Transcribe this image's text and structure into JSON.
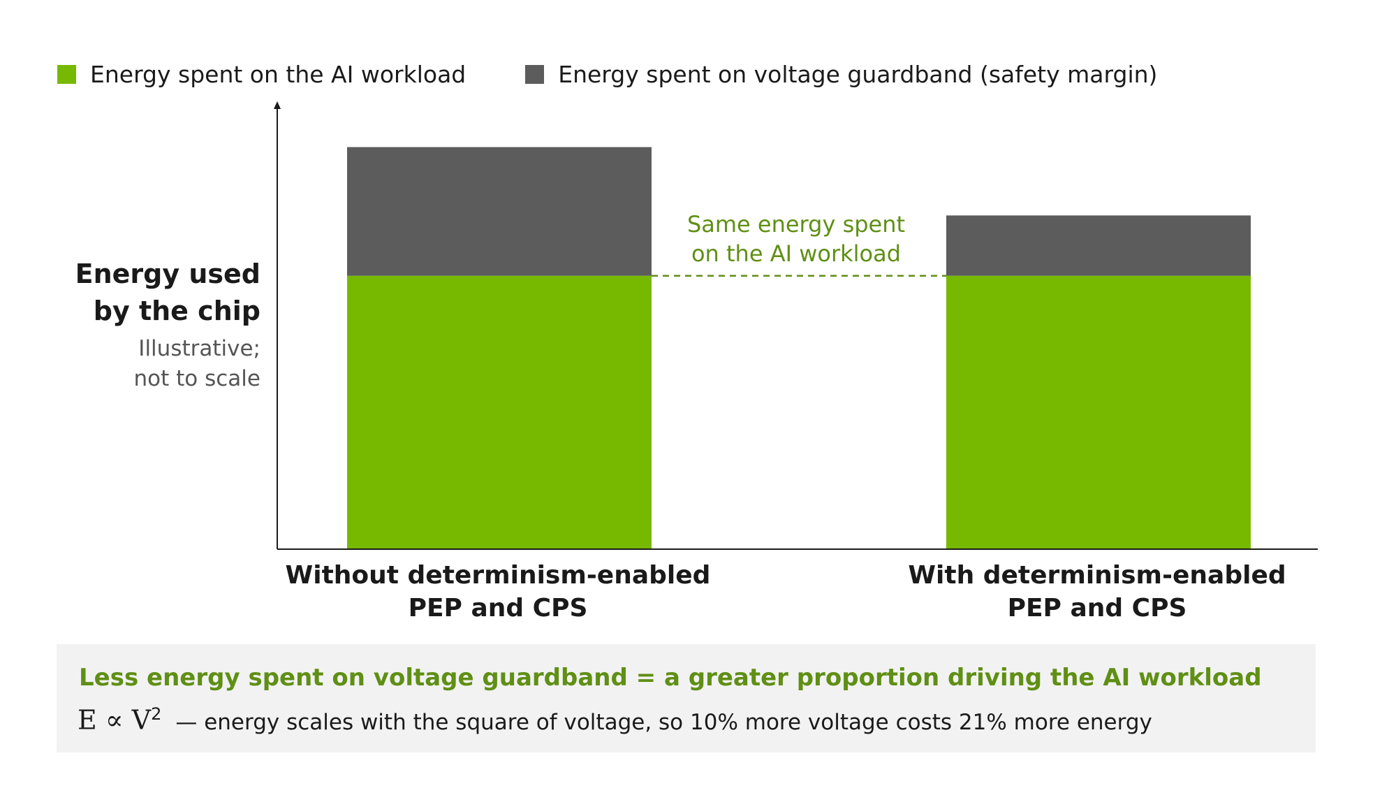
{
  "chart_data": {
    "type": "bar",
    "stacked": true,
    "categories": [
      "Without determinism-enabled PEP and CPS",
      "With determinism-enabled PEP and CPS"
    ],
    "category_lines": [
      [
        "Without determinism-enabled",
        "PEP and CPS"
      ],
      [
        "With determinism-enabled",
        "PEP and CPS"
      ]
    ],
    "series": [
      {
        "name": "Energy spent on the AI workload",
        "color": "#76b900",
        "values": [
          68,
          68
        ]
      },
      {
        "name": "Energy spent on voltage guardband (safety margin)",
        "color": "#5c5c5c",
        "values": [
          32,
          15
        ]
      }
    ],
    "ylim": [
      0,
      110
    ],
    "ylabel": "Energy used by the chip",
    "ylabel_lines": [
      "Energy used",
      "by the chip"
    ],
    "ylabel_note_lines": [
      "Illustrative;",
      "not to scale"
    ],
    "annotation": {
      "lines": [
        "Same energy spent",
        "on the AI workload"
      ],
      "color": "#5f8f14",
      "reference_value": 68
    },
    "grid": false,
    "legend_position": "top-left"
  },
  "footer": {
    "headline": "Less energy spent on voltage guardband = a greater proportion driving the AI workload",
    "formula_base": "E ∝ V",
    "formula_exp": "2",
    "note": "— energy scales with the square of voltage, so 10% more voltage costs 21% more energy"
  },
  "colors": {
    "accent_green": "#76b900",
    "guardband_gray": "#5c5c5c",
    "text_green": "#5f8f14",
    "footer_bg": "#f2f2f2"
  }
}
